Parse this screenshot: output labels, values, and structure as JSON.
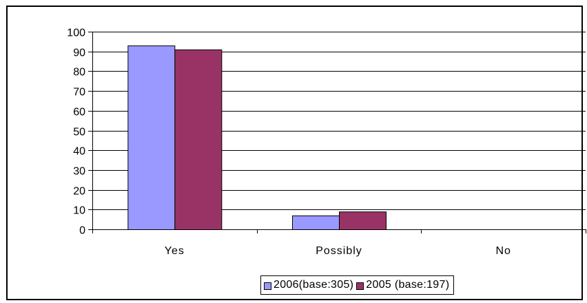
{
  "chart_data": {
    "type": "bar",
    "title": "",
    "xlabel": "",
    "ylabel": "",
    "categories": [
      "Yes",
      "Possibly",
      "No"
    ],
    "series": [
      {
        "name": "2006(base:305)",
        "values": [
          93,
          7,
          0
        ],
        "color": "#9999ff"
      },
      {
        "name": "2005 (base:197)",
        "values": [
          91,
          9,
          0
        ],
        "color": "#993366"
      }
    ],
    "ylim": [
      0,
      100
    ],
    "yticks": [
      0,
      10,
      20,
      30,
      40,
      50,
      60,
      70,
      80,
      90,
      100
    ],
    "grid": true,
    "legend_position": "bottom-center"
  }
}
